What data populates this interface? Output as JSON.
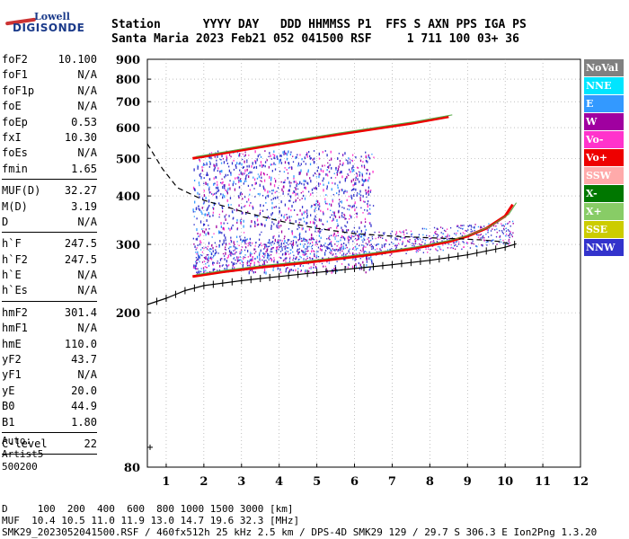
{
  "logo": {
    "line1": "Lowell",
    "line2": "DIGISONDE"
  },
  "header": {
    "line1": "Station      YYYY DAY   DDD HHMMSS P1  FFS S AXN PPS IGA PS",
    "line2": "Santa Maria 2023 Feb21 052 041500 RSF     1 711 100 03+ 36"
  },
  "params": {
    "group1": [
      {
        "k": "foF2",
        "v": "10.100"
      },
      {
        "k": "foF1",
        "v": "N/A"
      },
      {
        "k": "foF1p",
        "v": "N/A"
      },
      {
        "k": "foE",
        "v": "N/A"
      },
      {
        "k": "foEp",
        "v": "0.53"
      },
      {
        "k": "fxI",
        "v": "10.30"
      },
      {
        "k": "foEs",
        "v": "N/A"
      },
      {
        "k": "fmin",
        "v": "1.65"
      }
    ],
    "group2": [
      {
        "k": "MUF(D)",
        "v": "32.27"
      },
      {
        "k": "M(D)",
        "v": "3.19"
      },
      {
        "k": "D",
        "v": "N/A"
      }
    ],
    "group3": [
      {
        "k": "h`F",
        "v": "247.5"
      },
      {
        "k": "h`F2",
        "v": "247.5"
      },
      {
        "k": "h`E",
        "v": "N/A"
      },
      {
        "k": "h`Es",
        "v": "N/A"
      }
    ],
    "group4": [
      {
        "k": "hmF2",
        "v": "301.4"
      },
      {
        "k": "hmF1",
        "v": "N/A"
      },
      {
        "k": "hmE",
        "v": "110.0"
      },
      {
        "k": "yF2",
        "v": "43.7"
      },
      {
        "k": "yF1",
        "v": "N/A"
      },
      {
        "k": "yE",
        "v": "20.0"
      },
      {
        "k": "B0",
        "v": "44.9"
      },
      {
        "k": "B1",
        "v": "1.80"
      }
    ],
    "group5": [
      {
        "k": "C-level",
        "v": "22"
      }
    ]
  },
  "auto": {
    "l1": "Auto:",
    "l2": "Artist5",
    "l3": "500200"
  },
  "legend": [
    {
      "label": "NoVal",
      "color": "#808080"
    },
    {
      "label": "NNE",
      "color": "#00e5ff"
    },
    {
      "label": "E",
      "color": "#3399ff"
    },
    {
      "label": "W",
      "color": "#a000a0"
    },
    {
      "label": "Vo-",
      "color": "#ff33cc"
    },
    {
      "label": "Vo+",
      "color": "#ee0000"
    },
    {
      "label": "SSW",
      "color": "#ffaaaa"
    },
    {
      "label": "X-",
      "color": "#007700"
    },
    {
      "label": "X+",
      "color": "#88cc66"
    },
    {
      "label": "SSE",
      "color": "#cccc00"
    },
    {
      "label": "NNW",
      "color": "#3333cc"
    }
  ],
  "footer": {
    "l1": "D     100  200  400  600  800 1000 1500 3000 [km]",
    "l2": "MUF  10.4 10.5 11.0 11.9 13.0 14.7 19.6 32.3 [MHz]",
    "l3": "SMK29_2023052041500.RSF / 460fx512h 25 kHz 2.5 km / DPS-4D SMK29 129 / 29.7 S 306.3 E Ion2Png 1.3.20"
  },
  "chart_data": {
    "type": "scatter",
    "xlim": [
      0.5,
      12
    ],
    "ylim": [
      80,
      900
    ],
    "x_ticks": [
      1,
      2,
      3,
      4,
      5,
      6,
      7,
      8,
      9,
      10,
      11,
      12
    ],
    "y_ticks": [
      80,
      200,
      300,
      400,
      500,
      600,
      700,
      800,
      900
    ],
    "grid": true,
    "y_scale": "log",
    "series": [
      {
        "name": "",
        "kind": "trace_Fo",
        "color": "#ee0000",
        "x": [
          1.7,
          2.5,
          3.5,
          4.5,
          5.5,
          6.5,
          7.5,
          8.5,
          9.0,
          9.5,
          10.0,
          10.2
        ],
        "y": [
          248,
          255,
          262,
          268,
          275,
          283,
          292,
          305,
          315,
          330,
          355,
          380
        ]
      },
      {
        "name": "",
        "kind": "trace_2F",
        "color": "#ee0000",
        "x": [
          1.7,
          2.5,
          3.5,
          4.5,
          5.5,
          6.5,
          7.5,
          8.5
        ],
        "y": [
          500,
          515,
          535,
          555,
          575,
          595,
          615,
          640
        ]
      },
      {
        "name": "",
        "kind": "profile_dashed",
        "color": "#000000",
        "x": [
          0.5,
          0.9,
          1.3,
          2.0,
          3.0,
          4.0,
          5.0,
          6.0,
          7.0,
          8.0,
          8.8,
          9.4,
          9.9,
          10.1
        ],
        "y": [
          545,
          470,
          420,
          390,
          365,
          345,
          330,
          320,
          315,
          312,
          310,
          308,
          305,
          301
        ]
      },
      {
        "name": "",
        "kind": "profile_solid",
        "color": "#000000",
        "x": [
          0.5,
          1.0,
          1.5,
          2.0,
          3.0,
          4.0,
          5.0,
          6.0,
          7.0,
          8.0,
          9.0,
          10.0,
          10.3
        ],
        "y": [
          210,
          218,
          228,
          235,
          242,
          248,
          254,
          260,
          266,
          273,
          282,
          295,
          301
        ]
      }
    ]
  }
}
